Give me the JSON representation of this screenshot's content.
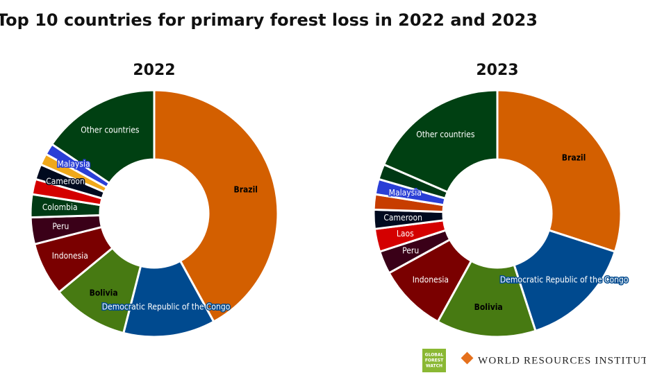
{
  "title": "Top 10 countries for primary forest loss in 2022 and 2023",
  "chart_data": [
    {
      "type": "donut",
      "title": "2022",
      "categories": [
        "Brazil",
        "Democratic Republic of the Congo",
        "Bolivia",
        "Indonesia",
        "Peru",
        "Colombia",
        null,
        "Cameroon",
        null,
        "Malaysia",
        "Other countries"
      ],
      "values": [
        42,
        12,
        10,
        7,
        3.5,
        3,
        2,
        2,
        1.5,
        1.5,
        15.5
      ],
      "colors": [
        "#d35f00",
        "#004a8f",
        "#477a12",
        "#7a0000",
        "#3a0018",
        "#003a14",
        "#d40000",
        "#000a1f",
        "#f0a81a",
        "#2a3fd6",
        "#004012"
      ]
    },
    {
      "type": "donut",
      "title": "2023",
      "categories": [
        "Brazil",
        "Democratic Republic of the Congo",
        "Bolivia",
        "Indonesia",
        "Peru",
        "Laos",
        "Cameroon",
        null,
        "Malaysia",
        null,
        "Other countries"
      ],
      "values": [
        30,
        15,
        13,
        9,
        3,
        3,
        2.5,
        2,
        2,
        2,
        18.5
      ],
      "colors": [
        "#d35f00",
        "#004a8f",
        "#477a12",
        "#7a0000",
        "#3a0018",
        "#d40000",
        "#000a1f",
        "#c73d00",
        "#2a3fd6",
        "#003814",
        "#004012"
      ]
    }
  ],
  "footer": {
    "gfw": [
      "GLOBAL",
      "FOREST",
      "WATCH"
    ],
    "wri": "WORLD RESOURCES INSTITUTE"
  }
}
